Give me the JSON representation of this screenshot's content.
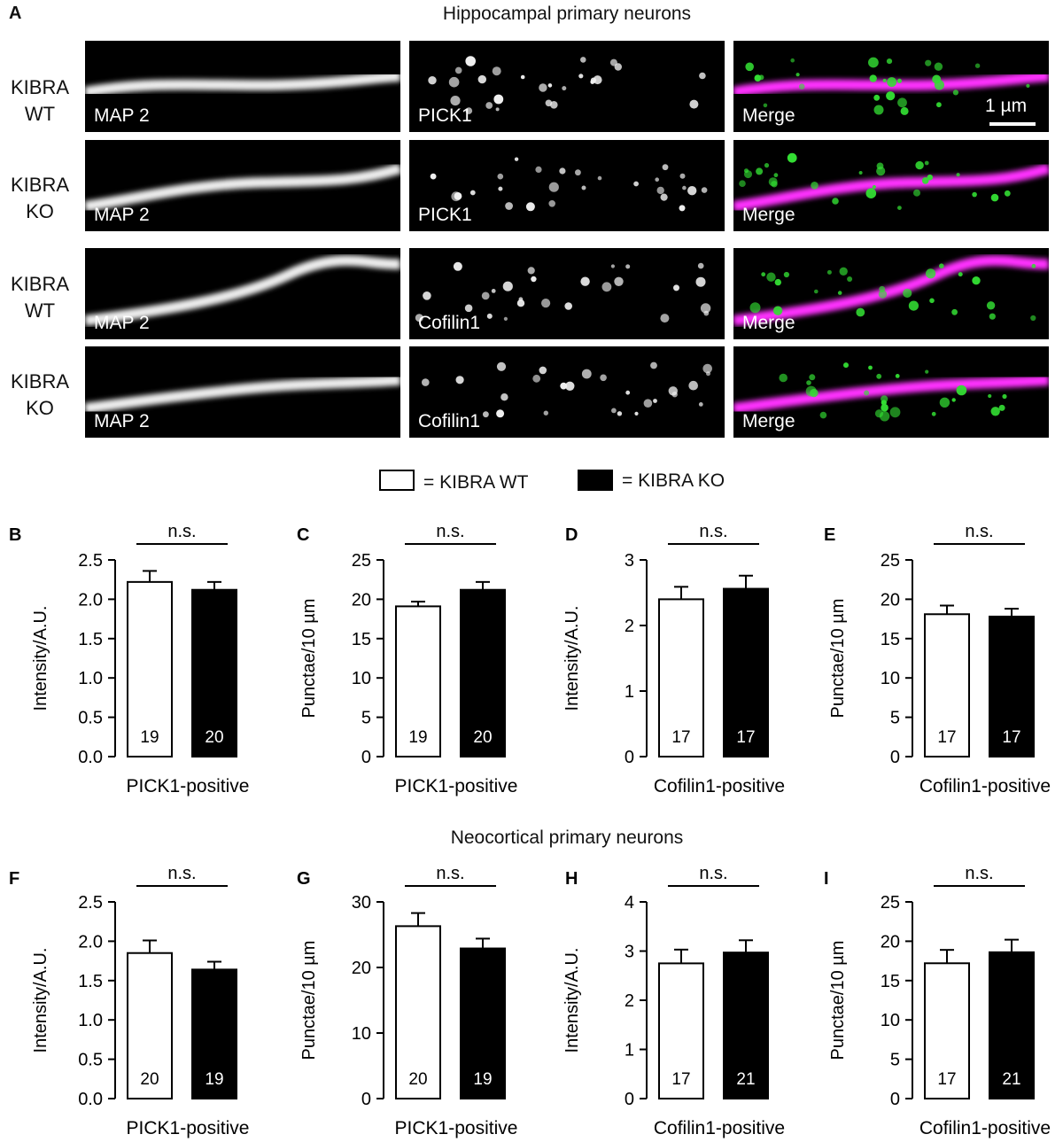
{
  "panel_a": {
    "letter": "A",
    "title": "Hippocampal primary neurons",
    "rows": [
      {
        "line1": "KIBRA",
        "line2": "WT",
        "labels": [
          "MAP 2",
          "PICK1",
          "Merge"
        ],
        "scale_bar": "1 µm"
      },
      {
        "line1": "KIBRA",
        "line2": "KO",
        "labels": [
          "MAP 2",
          "PICK1",
          "Merge"
        ]
      },
      {
        "line1": "KIBRA",
        "line2": "WT",
        "labels": [
          "MAP 2",
          "Cofilin1",
          "Merge"
        ]
      },
      {
        "line1": "KIBRA",
        "line2": "KO",
        "labels": [
          "MAP 2",
          "Cofilin1",
          "Merge"
        ]
      }
    ],
    "colors": {
      "map2": "#ff33ff",
      "puncta": "#33dd33"
    }
  },
  "legend": {
    "wt": "= KIBRA WT",
    "ko": "= KIBRA KO"
  },
  "section_title": "Neocortical primary neurons",
  "chart_data": [
    {
      "letter": "B",
      "type": "bar",
      "ylabel": "Intensity/A.U.",
      "xlabel": "PICK1-positive",
      "ylim": [
        0,
        2.5
      ],
      "yticks": [
        "0.0",
        "0.5",
        "1.0",
        "1.5",
        "2.0",
        "2.5"
      ],
      "significance": "n.s.",
      "categories": [
        "KIBRA WT",
        "KIBRA KO"
      ],
      "values": [
        2.22,
        2.12
      ],
      "errors": [
        0.14,
        0.1
      ],
      "n": [
        "19",
        "20"
      ]
    },
    {
      "letter": "C",
      "type": "bar",
      "ylabel": "Punctae/10 µm",
      "xlabel": "PICK1-positive",
      "ylim": [
        0,
        25
      ],
      "yticks": [
        "0",
        "5",
        "10",
        "15",
        "20",
        "25"
      ],
      "significance": "n.s.",
      "categories": [
        "KIBRA WT",
        "KIBRA KO"
      ],
      "values": [
        19.1,
        21.2
      ],
      "errors": [
        0.6,
        1.0
      ],
      "n": [
        "19",
        "20"
      ]
    },
    {
      "letter": "D",
      "type": "bar",
      "ylabel": "Intensity/A.U.",
      "xlabel": "Cofilin1-positive",
      "ylim": [
        0,
        3
      ],
      "yticks": [
        "0",
        "1",
        "2",
        "3"
      ],
      "significance": "n.s.",
      "categories": [
        "KIBRA WT",
        "KIBRA KO"
      ],
      "values": [
        2.4,
        2.56
      ],
      "errors": [
        0.19,
        0.2
      ],
      "n": [
        "17",
        "17"
      ]
    },
    {
      "letter": "E",
      "type": "bar",
      "ylabel": "Punctae/10 µm",
      "xlabel": "Cofilin1-positive",
      "ylim": [
        0,
        25
      ],
      "yticks": [
        "0",
        "5",
        "10",
        "15",
        "20",
        "25"
      ],
      "significance": "n.s.",
      "categories": [
        "KIBRA WT",
        "KIBRA KO"
      ],
      "values": [
        18.1,
        17.8
      ],
      "errors": [
        1.1,
        1.0
      ],
      "n": [
        "17",
        "17"
      ]
    },
    {
      "letter": "F",
      "type": "bar",
      "ylabel": "Intensity/A.U.",
      "xlabel": "PICK1-positive",
      "ylim": [
        0,
        2.5
      ],
      "yticks": [
        "0.0",
        "0.5",
        "1.0",
        "1.5",
        "2.0",
        "2.5"
      ],
      "significance": "n.s.",
      "categories": [
        "KIBRA WT",
        "KIBRA KO"
      ],
      "values": [
        1.85,
        1.64
      ],
      "errors": [
        0.16,
        0.1
      ],
      "n": [
        "20",
        "19"
      ]
    },
    {
      "letter": "G",
      "type": "bar",
      "ylabel": "Punctae/10 µm",
      "xlabel": "PICK1-positive",
      "ylim": [
        0,
        30
      ],
      "yticks": [
        "0",
        "10",
        "20",
        "30"
      ],
      "significance": "n.s.",
      "categories": [
        "KIBRA WT",
        "KIBRA KO"
      ],
      "values": [
        26.3,
        22.9
      ],
      "errors": [
        2.0,
        1.5
      ],
      "n": [
        "20",
        "19"
      ]
    },
    {
      "letter": "H",
      "type": "bar",
      "ylabel": "Intensity/A.U.",
      "xlabel": "Cofilin1-positive",
      "ylim": [
        0,
        4
      ],
      "yticks": [
        "0",
        "1",
        "2",
        "3",
        "4"
      ],
      "significance": "n.s.",
      "categories": [
        "KIBRA WT",
        "KIBRA KO"
      ],
      "values": [
        2.75,
        2.97
      ],
      "errors": [
        0.28,
        0.25
      ],
      "n": [
        "17",
        "21"
      ]
    },
    {
      "letter": "I",
      "type": "bar",
      "ylabel": "Punctae/10 µm",
      "xlabel": "Cofilin1-positive",
      "ylim": [
        0,
        25
      ],
      "yticks": [
        "0",
        "5",
        "10",
        "15",
        "20",
        "25"
      ],
      "significance": "n.s.",
      "categories": [
        "KIBRA WT",
        "KIBRA KO"
      ],
      "values": [
        17.2,
        18.6
      ],
      "errors": [
        1.7,
        1.6
      ],
      "n": [
        "17",
        "21"
      ]
    }
  ]
}
